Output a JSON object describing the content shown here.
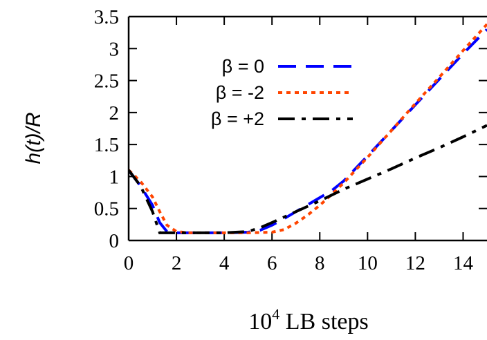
{
  "chart_data": {
    "type": "line",
    "xlabel_base": "10",
    "xlabel_exp": "4",
    "xlabel_rest": " LB steps",
    "ylabel": "h(t)/R",
    "xlim": [
      0,
      15
    ],
    "ylim": [
      0,
      3.5
    ],
    "x_ticks": [
      0,
      2,
      4,
      6,
      8,
      10,
      12,
      14
    ],
    "x_tick_labels": [
      "0",
      "2",
      "4",
      "6",
      "8",
      "10",
      "12",
      "14"
    ],
    "y_ticks": [
      0,
      0.5,
      1,
      1.5,
      2,
      2.5,
      3,
      3.5
    ],
    "y_tick_labels": [
      "0",
      "0.5",
      "1",
      "1.5",
      "2",
      "2.5",
      "3",
      "3.5"
    ],
    "grid": false,
    "legend_position": "top-center",
    "series": [
      {
        "name": "β = 0",
        "color": "#0000ff",
        "dash": "long-dash",
        "x": [
          0,
          0.5,
          1.0,
          1.3,
          1.6,
          2,
          3,
          4,
          5,
          5.5,
          6,
          6.5,
          7,
          7.5,
          8,
          8.5,
          9,
          10,
          11,
          12,
          13,
          14,
          15
        ],
        "y": [
          1.1,
          0.85,
          0.55,
          0.28,
          0.14,
          0.12,
          0.12,
          0.12,
          0.13,
          0.16,
          0.24,
          0.34,
          0.45,
          0.56,
          0.67,
          0.78,
          0.93,
          1.32,
          1.72,
          2.12,
          2.52,
          2.92,
          3.3
        ]
      },
      {
        "name": "β = -2",
        "color": "#ff4500",
        "dash": "dots",
        "x": [
          0,
          0.5,
          1.0,
          1.3,
          1.6,
          2,
          2.5,
          3,
          4,
          5,
          6,
          6.5,
          7,
          7.5,
          8,
          8.5,
          9,
          10,
          11,
          12,
          13,
          14,
          15
        ],
        "y": [
          1.1,
          0.92,
          0.68,
          0.45,
          0.24,
          0.14,
          0.12,
          0.12,
          0.12,
          0.12,
          0.13,
          0.17,
          0.27,
          0.4,
          0.55,
          0.72,
          0.9,
          1.3,
          1.72,
          2.14,
          2.55,
          2.97,
          3.38
        ]
      },
      {
        "name": "β = +2",
        "color": "#000000",
        "dash": "dash-dot",
        "x": [
          0,
          0.5,
          1.0,
          1.3,
          2,
          3,
          4,
          5,
          5.5,
          6,
          7,
          8,
          9,
          10,
          11,
          12,
          13,
          14,
          15
        ],
        "y": [
          1.1,
          0.85,
          0.45,
          0.12,
          0.12,
          0.12,
          0.12,
          0.14,
          0.2,
          0.28,
          0.45,
          0.62,
          0.8,
          0.96,
          1.12,
          1.29,
          1.45,
          1.62,
          1.8
        ]
      }
    ]
  }
}
